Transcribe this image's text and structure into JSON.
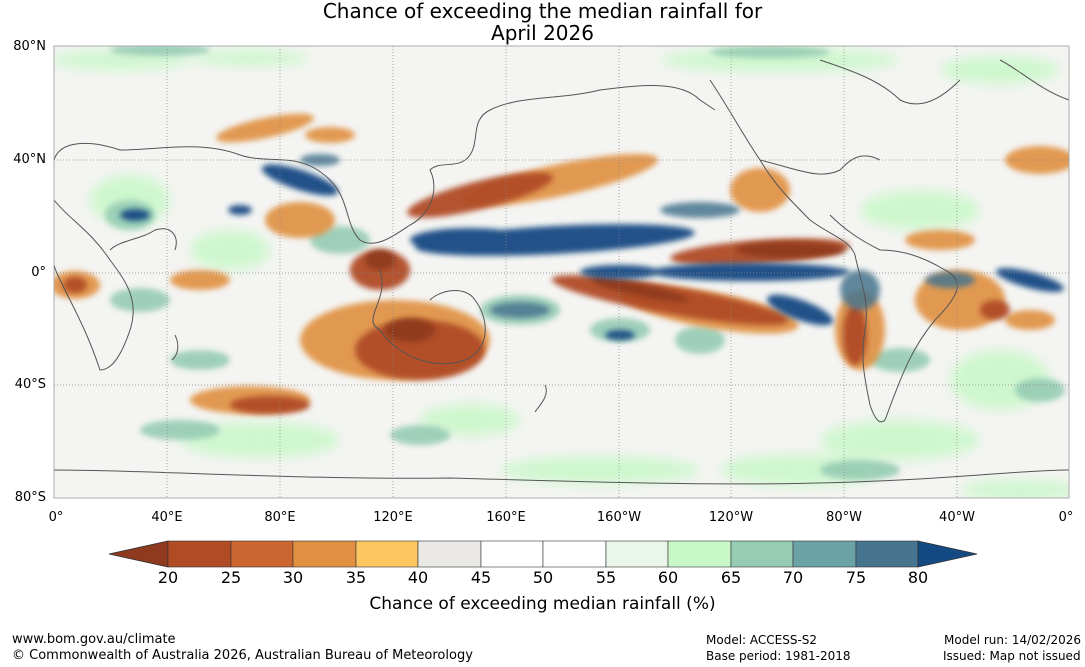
{
  "title": {
    "line1": "Chance of exceeding the median rainfall for",
    "line2": "April 2026"
  },
  "map": {
    "lat_labels": [
      "80°N",
      "40°N",
      "0°",
      "40°S",
      "80°S"
    ],
    "lon_labels": [
      "0°",
      "40°E",
      "80°E",
      "120°E",
      "160°E",
      "160°W",
      "120°W",
      "80°W",
      "40°W",
      "0°"
    ]
  },
  "colorbar": {
    "ticks": [
      "20",
      "25",
      "30",
      "35",
      "40",
      "45",
      "50",
      "55",
      "60",
      "65",
      "70",
      "75",
      "80"
    ],
    "colors": [
      "#8f3a1e",
      "#b04b25",
      "#cc6630",
      "#e09040",
      "#fcc660",
      "#ebe9e5",
      "#ffffff",
      "#ffffff",
      "#e9f6e9",
      "#c8f8c8",
      "#96ccb4",
      "#6aa2a6",
      "#47758f",
      "#134a83"
    ],
    "label": "Chance of exceeding median rainfall (%)"
  },
  "footer": {
    "website": "www.bom.gov.au/climate",
    "copyright": "© Commonwealth of Australia 2026, Australian Bureau of Meteorology",
    "model": "Model: ACCESS-S2",
    "base_period": "Base period: 1981-2018",
    "model_run": "Model run: 14/02/2026",
    "issued": "Issued: Map not issued"
  }
}
